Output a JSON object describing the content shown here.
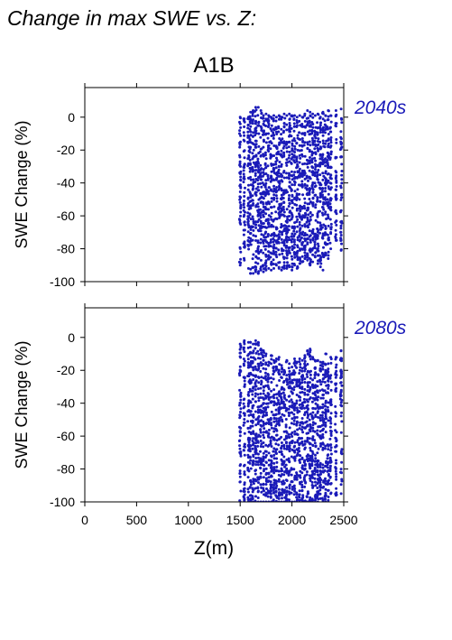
{
  "page_title": "Change in max SWE vs. Z:",
  "figure_title": "A1B",
  "xlabel": "Z(m)",
  "point_color": "#1a1ab8",
  "chart_data": [
    {
      "type": "scatter",
      "panel_label": "2040s",
      "ylabel": "SWE Change (%)",
      "xlim": [
        0,
        2500
      ],
      "ylim": [
        -100,
        18
      ],
      "x_ticks": [
        0,
        500,
        1000,
        1500,
        2000,
        2500
      ],
      "y_ticks": [
        0,
        -20,
        -40,
        -60,
        -80,
        -100
      ],
      "show_x_tick_labels": false,
      "grid": false,
      "columns": [
        {
          "x": 1500,
          "ymin": -90,
          "ymax": 0
        },
        {
          "x": 1540,
          "ymin": -87,
          "ymax": -1
        },
        {
          "x": 1580,
          "ymin": -92,
          "ymax": 0
        },
        {
          "x": 1600,
          "ymin": -95,
          "ymax": 3
        },
        {
          "x": 1625,
          "ymin": -95,
          "ymax": 4
        },
        {
          "x": 1650,
          "ymin": -94,
          "ymax": 6
        },
        {
          "x": 1675,
          "ymin": -95,
          "ymax": 6
        },
        {
          "x": 1700,
          "ymin": -93,
          "ymax": 4
        },
        {
          "x": 1725,
          "ymin": -94,
          "ymax": 1
        },
        {
          "x": 1750,
          "ymin": -93,
          "ymax": 2
        },
        {
          "x": 1775,
          "ymin": -92,
          "ymax": 1
        },
        {
          "x": 1800,
          "ymin": -93,
          "ymax": 0
        },
        {
          "x": 1825,
          "ymin": -92,
          "ymax": 1
        },
        {
          "x": 1850,
          "ymin": -90,
          "ymax": 0
        },
        {
          "x": 1875,
          "ymin": -92,
          "ymax": 1
        },
        {
          "x": 1900,
          "ymin": -93,
          "ymax": 0
        },
        {
          "x": 1925,
          "ymin": -92,
          "ymax": 2
        },
        {
          "x": 1950,
          "ymin": -92,
          "ymax": 1
        },
        {
          "x": 1975,
          "ymin": -91,
          "ymax": 2
        },
        {
          "x": 2000,
          "ymin": -93,
          "ymax": 1
        },
        {
          "x": 2025,
          "ymin": -90,
          "ymax": 1
        },
        {
          "x": 2050,
          "ymin": -92,
          "ymax": 0
        },
        {
          "x": 2075,
          "ymin": -89,
          "ymax": 1
        },
        {
          "x": 2100,
          "ymin": -88,
          "ymax": 0
        },
        {
          "x": 2125,
          "ymin": -86,
          "ymax": 2
        },
        {
          "x": 2150,
          "ymin": -87,
          "ymax": 4
        },
        {
          "x": 2175,
          "ymin": -90,
          "ymax": 3
        },
        {
          "x": 2200,
          "ymin": -88,
          "ymax": 2
        },
        {
          "x": 2225,
          "ymin": -85,
          "ymax": 1
        },
        {
          "x": 2250,
          "ymin": -89,
          "ymax": 2
        },
        {
          "x": 2275,
          "ymin": -91,
          "ymax": 0
        },
        {
          "x": 2300,
          "ymin": -93,
          "ymax": 3
        },
        {
          "x": 2325,
          "ymin": -84,
          "ymax": 1
        },
        {
          "x": 2350,
          "ymin": -86,
          "ymax": 4
        },
        {
          "x": 2375,
          "ymin": -80,
          "ymax": 1
        },
        {
          "x": 2425,
          "ymin": -75,
          "ymax": 4
        },
        {
          "x": 2475,
          "ymin": -81,
          "ymax": 5
        }
      ]
    },
    {
      "type": "scatter",
      "panel_label": "2080s",
      "ylabel": "SWE Change (%)",
      "xlim": [
        0,
        2500
      ],
      "ylim": [
        -100,
        18
      ],
      "x_ticks": [
        0,
        500,
        1000,
        1500,
        2000,
        2500
      ],
      "y_ticks": [
        0,
        -20,
        -40,
        -60,
        -80,
        -100
      ],
      "show_x_tick_labels": true,
      "grid": false,
      "columns": [
        {
          "x": 1500,
          "ymin": -100,
          "ymax": -4
        },
        {
          "x": 1540,
          "ymin": -100,
          "ymax": -2
        },
        {
          "x": 1580,
          "ymin": -100,
          "ymax": -3
        },
        {
          "x": 1600,
          "ymin": -100,
          "ymax": -3
        },
        {
          "x": 1625,
          "ymin": -100,
          "ymax": -4
        },
        {
          "x": 1650,
          "ymin": -100,
          "ymax": -2
        },
        {
          "x": 1675,
          "ymin": -100,
          "ymax": -3
        },
        {
          "x": 1700,
          "ymin": -100,
          "ymax": -7
        },
        {
          "x": 1725,
          "ymin": -100,
          "ymax": -8
        },
        {
          "x": 1750,
          "ymin": -100,
          "ymax": -10
        },
        {
          "x": 1775,
          "ymin": -100,
          "ymax": -15
        },
        {
          "x": 1800,
          "ymin": -100,
          "ymax": -11
        },
        {
          "x": 1825,
          "ymin": -100,
          "ymax": -14
        },
        {
          "x": 1850,
          "ymin": -100,
          "ymax": -13
        },
        {
          "x": 1875,
          "ymin": -100,
          "ymax": -12
        },
        {
          "x": 1900,
          "ymin": -100,
          "ymax": -17
        },
        {
          "x": 1925,
          "ymin": -100,
          "ymax": -20
        },
        {
          "x": 1950,
          "ymin": -100,
          "ymax": -14
        },
        {
          "x": 1975,
          "ymin": -100,
          "ymax": -16
        },
        {
          "x": 2000,
          "ymin": -100,
          "ymax": -18
        },
        {
          "x": 2025,
          "ymin": -100,
          "ymax": -13
        },
        {
          "x": 2050,
          "ymin": -100,
          "ymax": -15
        },
        {
          "x": 2075,
          "ymin": -99,
          "ymax": -13
        },
        {
          "x": 2100,
          "ymin": -99,
          "ymax": -14
        },
        {
          "x": 2125,
          "ymin": -100,
          "ymax": -11
        },
        {
          "x": 2150,
          "ymin": -100,
          "ymax": -8
        },
        {
          "x": 2175,
          "ymin": -100,
          "ymax": -7
        },
        {
          "x": 2200,
          "ymin": -99,
          "ymax": -12
        },
        {
          "x": 2225,
          "ymin": -99,
          "ymax": -14
        },
        {
          "x": 2250,
          "ymin": -100,
          "ymax": -14
        },
        {
          "x": 2275,
          "ymin": -98,
          "ymax": -15
        },
        {
          "x": 2300,
          "ymin": -100,
          "ymax": -15
        },
        {
          "x": 2325,
          "ymin": -100,
          "ymax": -10
        },
        {
          "x": 2350,
          "ymin": -99,
          "ymax": -16
        },
        {
          "x": 2375,
          "ymin": -95,
          "ymax": -12
        },
        {
          "x": 2425,
          "ymin": -96,
          "ymax": -12
        },
        {
          "x": 2475,
          "ymin": -95,
          "ymax": -8
        }
      ]
    }
  ]
}
